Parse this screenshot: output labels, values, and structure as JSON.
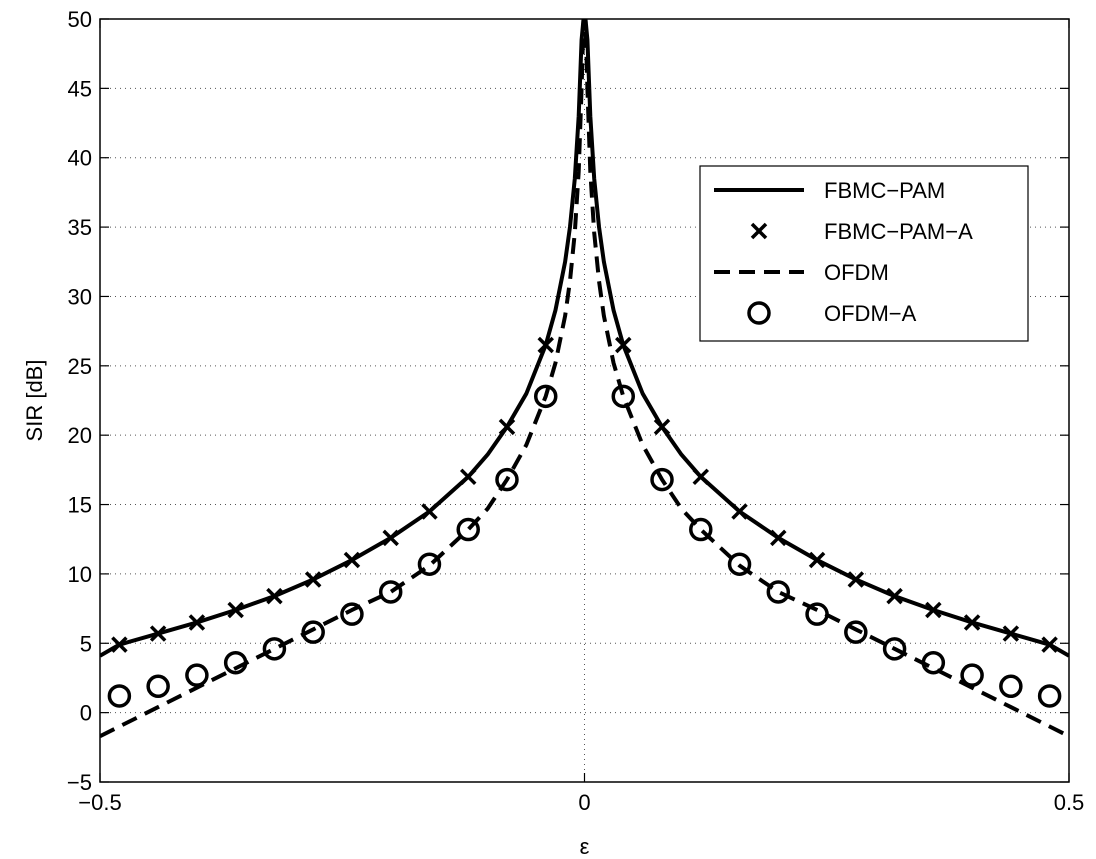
{
  "chart_data": {
    "type": "line",
    "title": "",
    "xlabel": "ε",
    "ylabel": "SIR [dB]",
    "xlim": [
      -0.5,
      0.5
    ],
    "ylim": [
      -5,
      50
    ],
    "xticks": [
      -0.5,
      0,
      0.5
    ],
    "xtick_labels": [
      "−0.5",
      "0",
      "0.5"
    ],
    "yticks": [
      -5,
      0,
      5,
      10,
      15,
      20,
      25,
      30,
      35,
      40,
      45,
      50
    ],
    "ytick_labels": [
      "−5",
      "0",
      "5",
      "10",
      "15",
      "20",
      "25",
      "30",
      "35",
      "40",
      "45",
      "50"
    ],
    "grid": true,
    "legend_position": "top-right",
    "series": [
      {
        "name": "FBMC−PAM",
        "style": "solid-line",
        "color": "#000000",
        "x": [
          -0.5,
          -0.48,
          -0.44,
          -0.4,
          -0.36,
          -0.32,
          -0.28,
          -0.24,
          -0.2,
          -0.16,
          -0.12,
          -0.1,
          -0.08,
          -0.06,
          -0.04,
          -0.03,
          -0.02,
          -0.015,
          -0.01,
          -0.006,
          -0.003,
          -0.001,
          0,
          0.001,
          0.003,
          0.006,
          0.01,
          0.015,
          0.02,
          0.03,
          0.04,
          0.06,
          0.08,
          0.1,
          0.12,
          0.16,
          0.2,
          0.24,
          0.28,
          0.32,
          0.36,
          0.4,
          0.44,
          0.48,
          0.5
        ],
        "y": [
          4.1,
          4.9,
          5.7,
          6.5,
          7.4,
          8.4,
          9.6,
          11.0,
          12.6,
          14.5,
          17.0,
          18.6,
          20.6,
          23.0,
          26.5,
          29.0,
          32.5,
          35.0,
          38.5,
          43.0,
          48.5,
          50,
          50,
          50,
          48.5,
          43.0,
          38.5,
          35.0,
          32.5,
          29.0,
          26.5,
          23.0,
          20.6,
          18.6,
          17.0,
          14.5,
          12.6,
          11.0,
          9.6,
          8.4,
          7.4,
          6.5,
          5.7,
          4.9,
          4.1
        ]
      },
      {
        "name": "FBMC−PAM−A",
        "style": "x-marker",
        "color": "#000000",
        "x": [
          -0.48,
          -0.44,
          -0.4,
          -0.36,
          -0.32,
          -0.28,
          -0.24,
          -0.2,
          -0.16,
          -0.12,
          -0.08,
          -0.04,
          0.04,
          0.08,
          0.12,
          0.16,
          0.2,
          0.24,
          0.28,
          0.32,
          0.36,
          0.4,
          0.44,
          0.48
        ],
        "y": [
          4.9,
          5.7,
          6.5,
          7.4,
          8.4,
          9.6,
          11.0,
          12.6,
          14.5,
          17.0,
          20.6,
          26.5,
          26.5,
          20.6,
          17.0,
          14.5,
          12.6,
          11.0,
          9.6,
          8.4,
          7.4,
          6.5,
          5.7,
          4.9
        ]
      },
      {
        "name": "OFDM",
        "style": "dashed-line",
        "color": "#000000",
        "x": [
          -0.5,
          -0.48,
          -0.44,
          -0.4,
          -0.36,
          -0.32,
          -0.28,
          -0.24,
          -0.2,
          -0.16,
          -0.12,
          -0.1,
          -0.08,
          -0.06,
          -0.04,
          -0.03,
          -0.02,
          -0.015,
          -0.01,
          -0.006,
          -0.003,
          -0.001,
          0,
          0.001,
          0.003,
          0.006,
          0.01,
          0.015,
          0.02,
          0.03,
          0.04,
          0.06,
          0.08,
          0.1,
          0.12,
          0.16,
          0.2,
          0.24,
          0.28,
          0.32,
          0.36,
          0.4,
          0.44,
          0.48,
          0.5
        ],
        "y": [
          -1.7,
          -1.0,
          0.4,
          1.8,
          3.2,
          4.6,
          6.0,
          7.4,
          8.7,
          10.6,
          13.2,
          14.7,
          16.8,
          19.3,
          22.8,
          25.2,
          28.6,
          31.1,
          34.6,
          39.0,
          45.0,
          50,
          50,
          50,
          45.0,
          39.0,
          34.6,
          31.1,
          28.6,
          25.2,
          22.8,
          19.3,
          16.8,
          14.7,
          13.2,
          10.6,
          8.7,
          7.4,
          6.0,
          4.6,
          3.2,
          1.8,
          0.4,
          -1.0,
          -1.7
        ]
      },
      {
        "name": "OFDM−A",
        "style": "o-marker",
        "color": "#000000",
        "x": [
          -0.48,
          -0.44,
          -0.4,
          -0.36,
          -0.32,
          -0.28,
          -0.24,
          -0.2,
          -0.16,
          -0.12,
          -0.08,
          -0.04,
          0.04,
          0.08,
          0.12,
          0.16,
          0.2,
          0.24,
          0.28,
          0.32,
          0.36,
          0.4,
          0.44,
          0.48
        ],
        "y": [
          1.2,
          1.9,
          2.7,
          3.6,
          4.6,
          5.8,
          7.1,
          8.7,
          10.7,
          13.2,
          16.8,
          22.8,
          22.8,
          16.8,
          13.2,
          10.7,
          8.7,
          7.1,
          5.8,
          4.6,
          3.6,
          2.7,
          1.9,
          1.2
        ]
      }
    ]
  }
}
